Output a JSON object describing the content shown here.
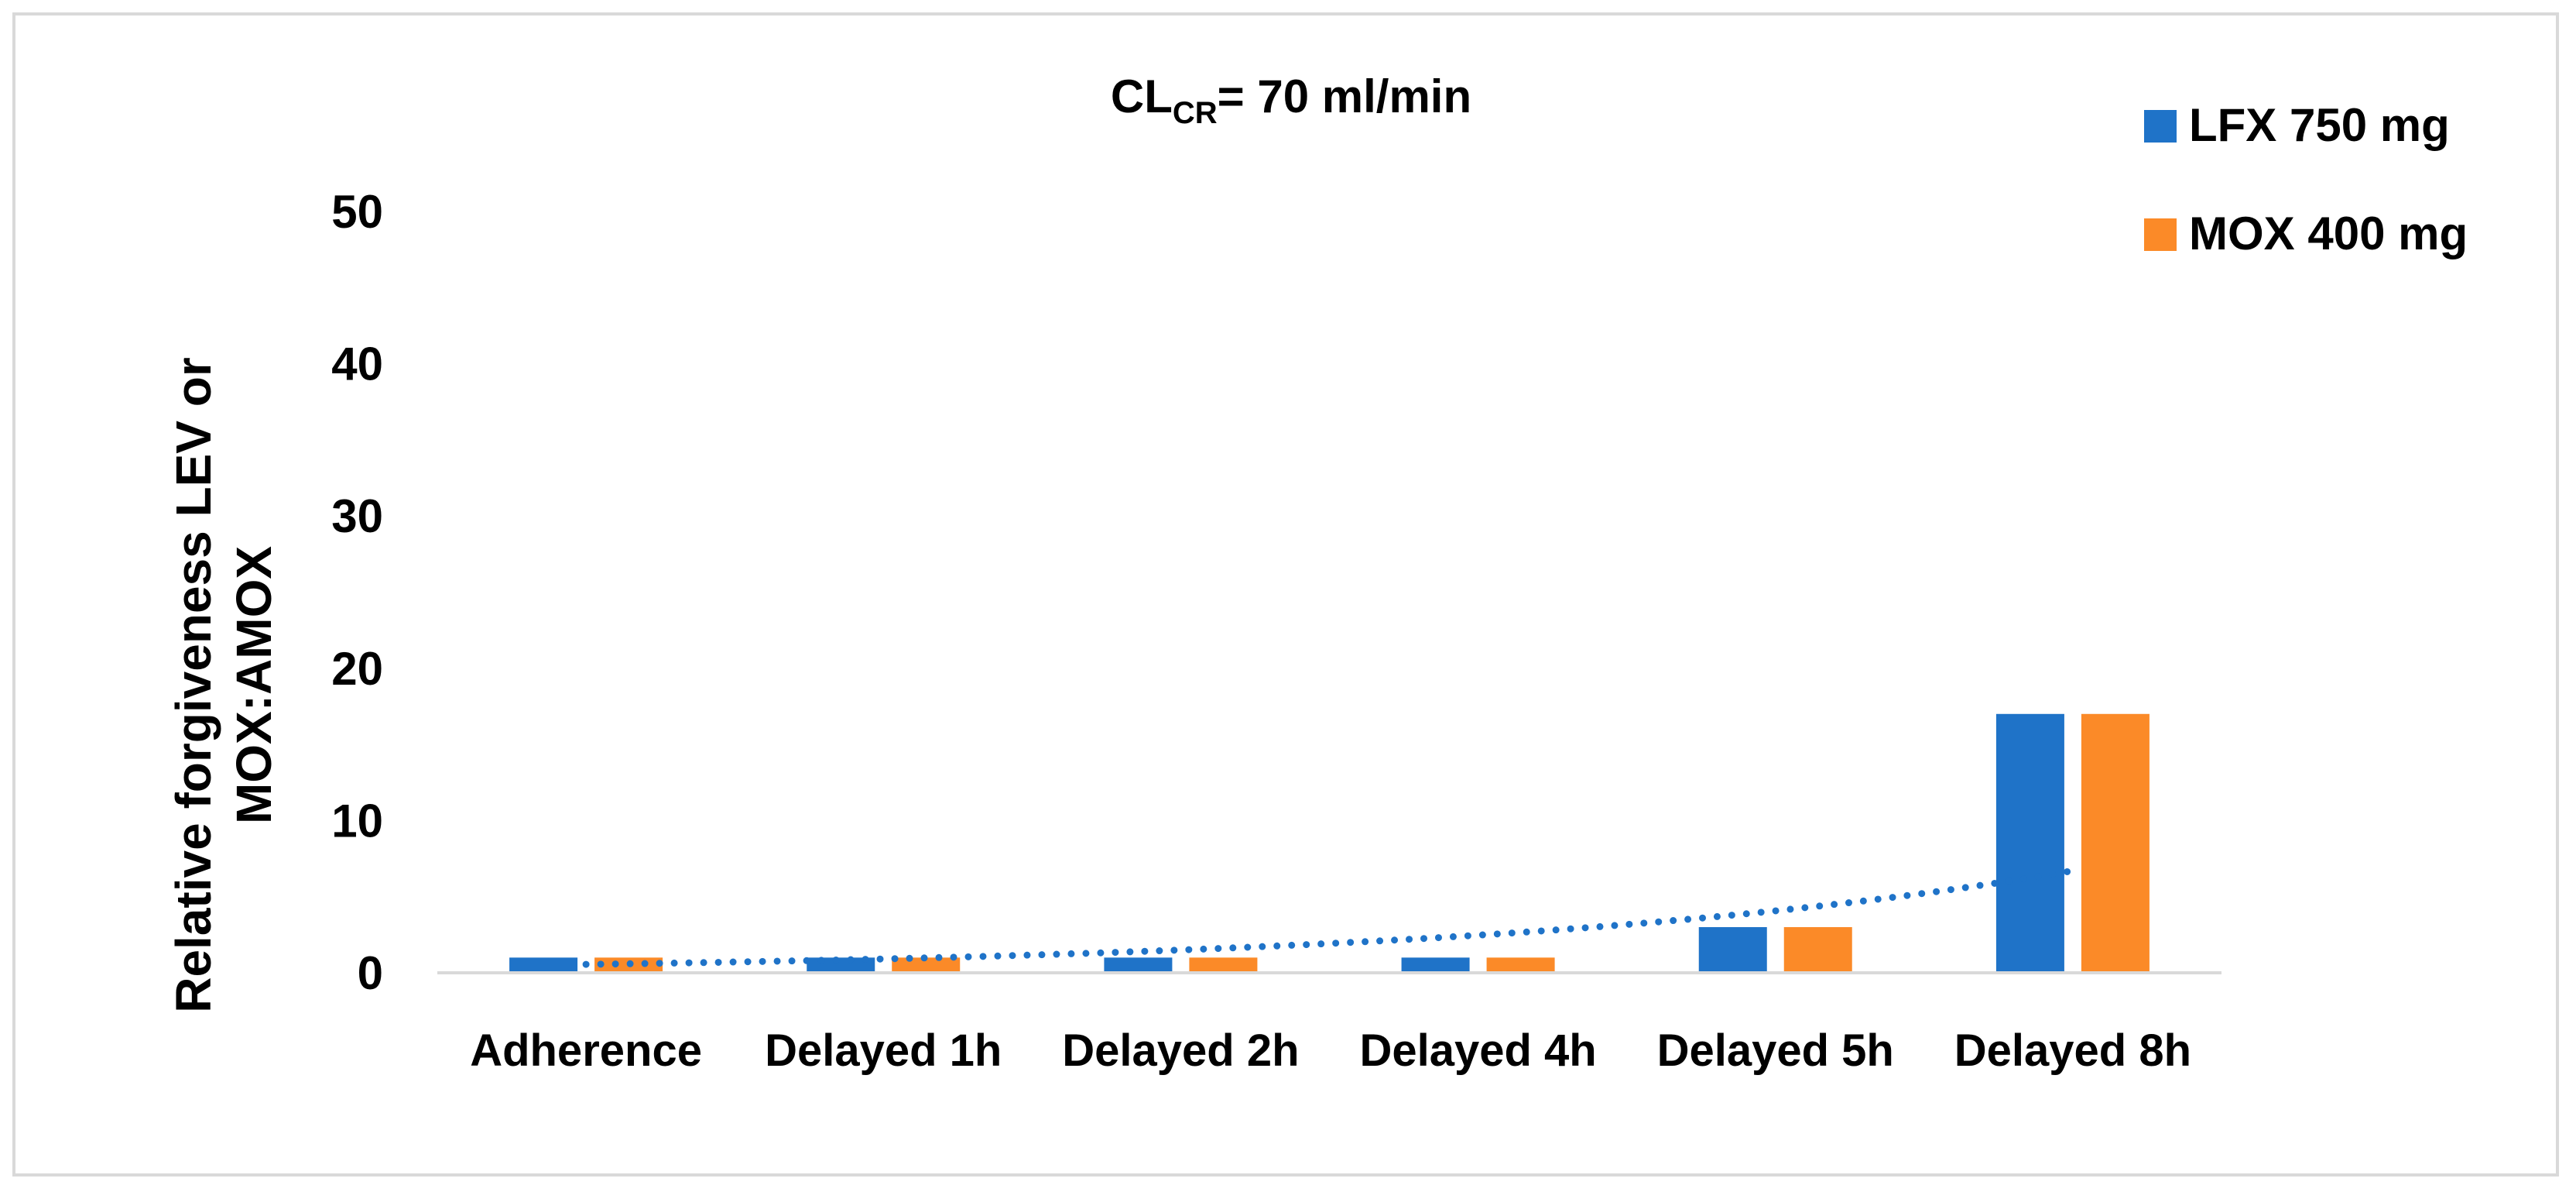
{
  "chart_data": {
    "type": "bar",
    "title_main": "CL",
    "title_sub": "CR",
    "title_rest": "= 70 ml/min",
    "ylabel_line1": "Relative forgiveness  LEV or",
    "ylabel_line2": "MOX:AMOX",
    "xlabel": "",
    "ylim": [
      0,
      50
    ],
    "yticks": [
      "0",
      "10",
      "20",
      "30",
      "40",
      "50"
    ],
    "categories": [
      "Adherence",
      "Delayed 1h",
      "Delayed 2h",
      "Delayed 4h",
      "Delayed 5h",
      "Delayed 8h"
    ],
    "series": [
      {
        "name": "LFX 750 mg",
        "color": "#1f73c8",
        "values": [
          1,
          1,
          1,
          1,
          3,
          17
        ]
      },
      {
        "name": "MOX 400 mg",
        "color": "#fb8a28",
        "values": [
          1,
          1,
          1,
          1,
          3,
          17
        ]
      }
    ],
    "trendline": {
      "type": "exponential",
      "style": "dotted",
      "color": "#1f73c8",
      "series": "LFX 750 mg"
    },
    "grid": false,
    "legend_position": "top-right"
  }
}
